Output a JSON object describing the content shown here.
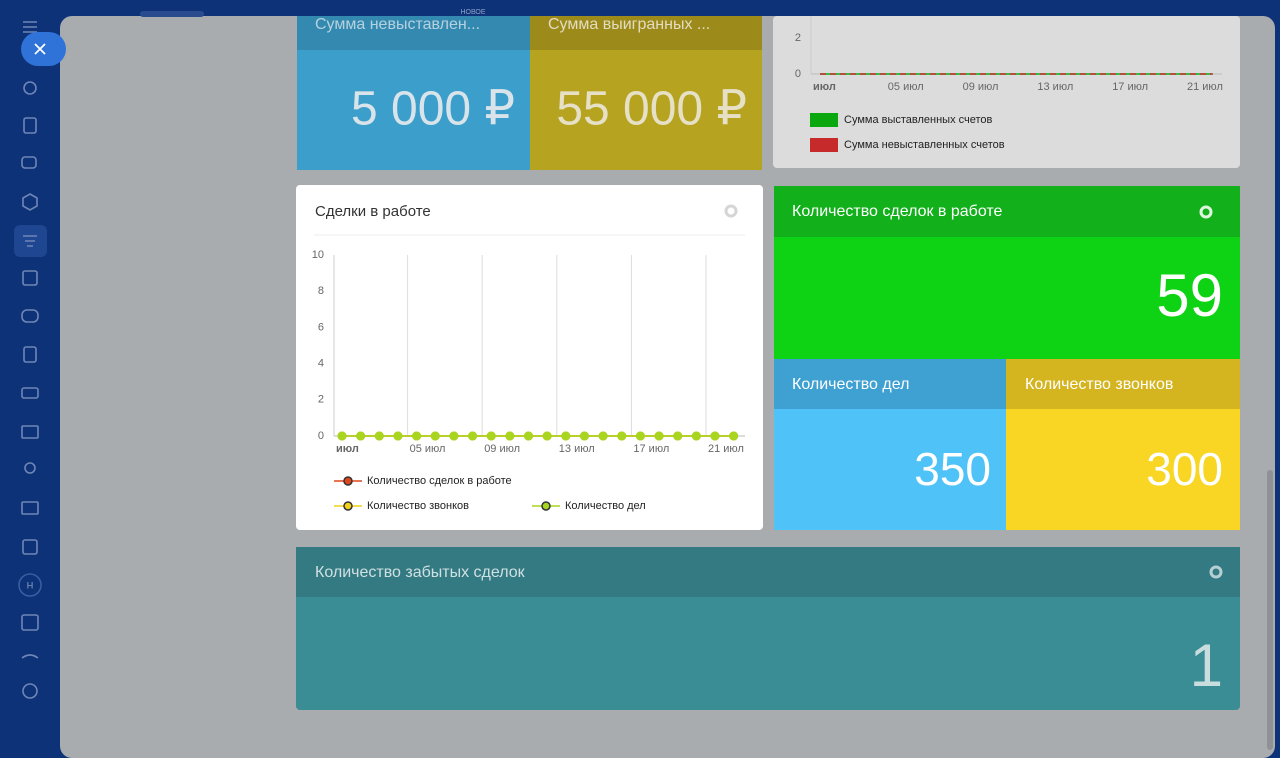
{
  "badge": "НОВОЕ",
  "sidebar": {
    "avatar": "Н"
  },
  "top_tiles": [
    {
      "title": "Сумма невыставлен...",
      "value": "5 000 ₽"
    },
    {
      "title": "Сумма выигранных ...",
      "value": "55 000 ₽"
    }
  ],
  "invoice_chart": {
    "type": "line",
    "categories": [
      "июл",
      null,
      null,
      null,
      "05 июл",
      null,
      null,
      null,
      "09 июл",
      null,
      null,
      null,
      "13 июл",
      null,
      null,
      null,
      "17 июл",
      null,
      null,
      null,
      "21 июл",
      null
    ],
    "series": [
      {
        "name": "Сумма выставленных счетов",
        "color": "#0aa70f",
        "values": [
          0,
          0,
          0,
          0,
          0,
          0,
          0,
          0,
          0,
          0,
          0,
          0,
          0,
          0,
          0,
          0,
          0,
          0,
          0,
          0,
          0,
          0
        ]
      },
      {
        "name": "Сумма невыставленных счетов",
        "color": "#c62a2a",
        "values": [
          0,
          0,
          0,
          0,
          0,
          0,
          0,
          0,
          0,
          0,
          0,
          0,
          0,
          0,
          0,
          0,
          0,
          0,
          0,
          0,
          0,
          0
        ]
      }
    ],
    "ylim": [
      0,
      2
    ],
    "yticks": [
      0,
      2
    ]
  },
  "deals_chart": {
    "type": "line",
    "title": "Сделки в работе",
    "categories": [
      "июл",
      null,
      null,
      null,
      "05 июл",
      null,
      null,
      null,
      "09 июл",
      null,
      null,
      null,
      "13 июл",
      null,
      null,
      null,
      "17 июл",
      null,
      null,
      null,
      "21 июл",
      null
    ],
    "series": [
      {
        "name": "Количество сделок в работе",
        "color": "#e0461b",
        "values": [
          0,
          0,
          0,
          0,
          0,
          0,
          0,
          0,
          0,
          0,
          0,
          0,
          0,
          0,
          0,
          0,
          0,
          0,
          0,
          0,
          0,
          0
        ]
      },
      {
        "name": "Количество звонков",
        "color": "#f2d21a",
        "values": [
          0,
          0,
          0,
          0,
          0,
          0,
          0,
          0,
          0,
          0,
          0,
          0,
          0,
          0,
          0,
          0,
          0,
          0,
          0,
          0,
          0,
          0
        ]
      },
      {
        "name": "Количество дел",
        "color": "#a8d51f",
        "values": [
          0,
          0,
          0,
          0,
          0,
          0,
          0,
          0,
          0,
          0,
          0,
          0,
          0,
          0,
          0,
          0,
          0,
          0,
          0,
          0,
          0,
          0
        ]
      }
    ],
    "ylim": [
      0,
      10
    ],
    "yticks": [
      0,
      2,
      4,
      6,
      8,
      10
    ]
  },
  "deals_count": {
    "title": "Количество сделок в работе",
    "value": "59"
  },
  "tasks": {
    "title": "Количество дел",
    "value": "350"
  },
  "calls": {
    "title": "Количество звонков",
    "value": "300"
  },
  "forgotten": {
    "title": "Количество забытых сделок",
    "value": "1"
  }
}
